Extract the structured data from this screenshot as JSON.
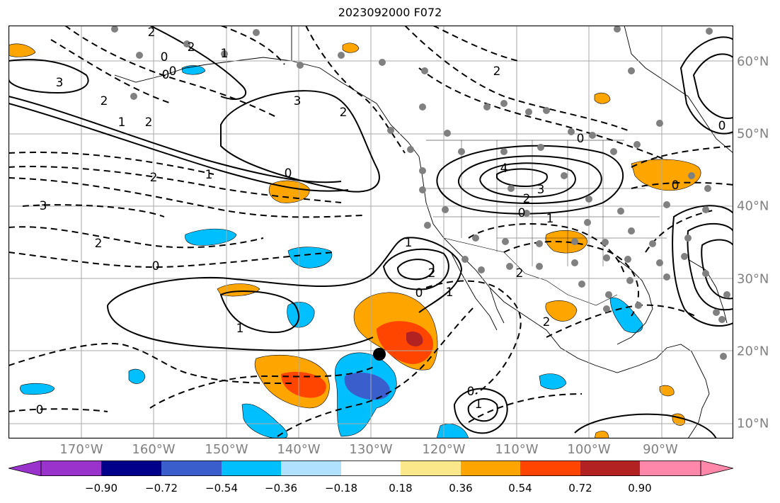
{
  "title": "2023092000 F072",
  "longitude_labels": [
    "170°W",
    "160°W",
    "150°W",
    "140°W",
    "130°W",
    "120°W",
    "110°W",
    "100°W",
    "90°W"
  ],
  "latitude_labels": [
    "60°N",
    "50°N",
    "40°N",
    "30°N",
    "20°N",
    "10°N"
  ],
  "contour_labels": [
    "2",
    "2",
    "0",
    "0",
    "3",
    "2",
    "1",
    "2",
    "1",
    "2",
    "3",
    "2",
    "0",
    "1",
    "0",
    "1",
    "2",
    "0",
    "2",
    "1",
    "1",
    "0",
    "0",
    "0",
    "1",
    "0",
    "2",
    "4",
    "3",
    "2",
    "0",
    "0",
    "2",
    "2",
    "0",
    "1",
    "3"
  ],
  "colorbar": {
    "colors": [
      "#9933cc",
      "#00008b",
      "#3a5fcd",
      "#00bfff",
      "#b0e2ff",
      "#ffffff",
      "#fbe88a",
      "#ffa500",
      "#ff4500",
      "#b22222",
      "#ff88aa"
    ],
    "tick_labels": [
      "−0.90",
      "−0.72",
      "−0.54",
      "−0.36",
      "−0.18",
      "0.18",
      "0.36",
      "0.54",
      "0.72",
      "0.90"
    ]
  },
  "marker_symbol": "storm-center-dot"
}
